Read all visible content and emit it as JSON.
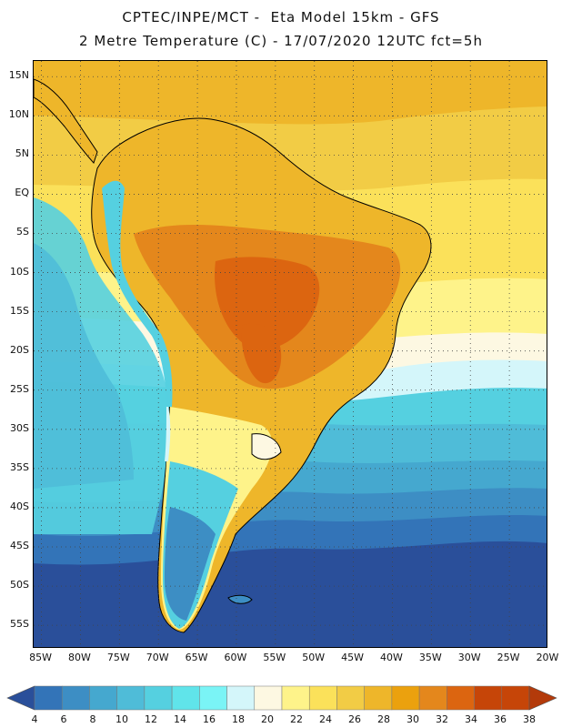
{
  "title": {
    "line1": "CPTEC/INPE/MCT -  Eta Model 15km - GFS",
    "line2": "2 Metre Temperature (C) - 17/07/2020 12UTC fct=5h"
  },
  "map": {
    "lat_labels": [
      "15N",
      "10N",
      "5N",
      "EQ",
      "5S",
      "10S",
      "15S",
      "20S",
      "25S",
      "30S",
      "35S",
      "40S",
      "45S",
      "50S",
      "55S"
    ],
    "lon_labels": [
      "85W",
      "80W",
      "75W",
      "70W",
      "65W",
      "60W",
      "55W",
      "50W",
      "45W",
      "40W",
      "35W",
      "30W",
      "25W",
      "20W"
    ],
    "lat_range": [
      17,
      -58
    ],
    "lon_range": [
      -86,
      -20
    ],
    "gridline_style": "dotted"
  },
  "colorbar": {
    "labels": [
      "4",
      "6",
      "8",
      "10",
      "12",
      "14",
      "16",
      "18",
      "20",
      "22",
      "24",
      "26",
      "28",
      "30",
      "32",
      "34",
      "36",
      "38"
    ],
    "colors": [
      "#2a4f9a",
      "#3374b8",
      "#3d8ec4",
      "#45a8cf",
      "#4fbcd8",
      "#55d0e0",
      "#60e4ea",
      "#7af4f6",
      "#d4f6fa",
      "#fdf8e2",
      "#fef38a",
      "#fbe15a",
      "#f2cc45",
      "#eeb62a",
      "#eba10e",
      "#e4871c",
      "#dc6510",
      "#c64508",
      "#b33a0a"
    ]
  }
}
